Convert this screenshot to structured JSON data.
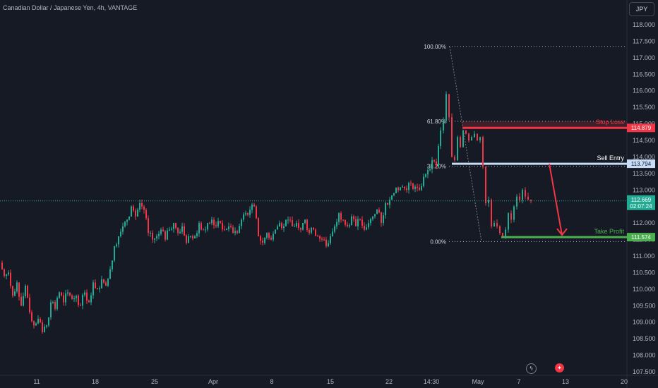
{
  "header": {
    "title": "Canadian Dollar / Japanese Yen, 4h, VANTAGE"
  },
  "currency_button": "JPY",
  "events": [
    {
      "icon": "lightning-icon"
    },
    {
      "icon": "canada-flag-icon"
    }
  ],
  "colors": {
    "background": "#161a25",
    "up": "#22ab94",
    "down": "#f23645",
    "stop_loss": "#f23645",
    "sell_entry": "#c7dcf5",
    "take_profit": "#4caf50"
  },
  "chart_data": {
    "type": "candlestick",
    "title": "Canadian Dollar / Japanese Yen, 4h, VANTAGE",
    "ylim": [
      107.5,
      118.0
    ],
    "y_ticks": [
      "118.000",
      "117.500",
      "117.000",
      "116.500",
      "116.000",
      "115.500",
      "115.000",
      "114.500",
      "114.000",
      "113.500",
      "113.000",
      "112.500",
      "112.000",
      "111.500",
      "111.000",
      "110.500",
      "110.000",
      "109.500",
      "109.000",
      "108.500",
      "108.000",
      "107.500"
    ],
    "x_ticks": [
      "11",
      "18",
      "25",
      "Apr",
      "8",
      "15",
      "22",
      "14:30",
      "May",
      "7",
      "13",
      "20"
    ],
    "last_price": {
      "value": "112.669",
      "countdown": "02:07:24"
    },
    "levels": [
      {
        "name": "Stop Loss",
        "value": 114.879,
        "label": "114.879"
      },
      {
        "name": "Sell Entry",
        "value": 113.794,
        "label": "113.794"
      },
      {
        "name": "Take Profit",
        "value": 111.574,
        "label": "111.574"
      }
    ],
    "fibonacci": [
      {
        "label": "100.00%",
        "value": 117.34
      },
      {
        "label": "61.80%",
        "value": 115.08
      },
      {
        "label": "38.20%",
        "value": 113.72
      },
      {
        "label": "0.00%",
        "value": 111.44
      }
    ],
    "path": [
      [
        0,
        110.8
      ],
      [
        6,
        110.4
      ],
      [
        12,
        110.5
      ],
      [
        18,
        109.8
      ],
      [
        24,
        110.2
      ],
      [
        30,
        109.5
      ],
      [
        36,
        110.1
      ],
      [
        42,
        109.3
      ],
      [
        48,
        108.9
      ],
      [
        54,
        109.1
      ],
      [
        60,
        108.7
      ],
      [
        66,
        108.9
      ],
      [
        72,
        109.6
      ],
      [
        78,
        109.4
      ],
      [
        84,
        109.9
      ],
      [
        90,
        109.6
      ],
      [
        96,
        109.9
      ],
      [
        102,
        109.7
      ],
      [
        108,
        109.8
      ],
      [
        114,
        109.5
      ],
      [
        120,
        109.9
      ],
      [
        126,
        109.6
      ],
      [
        132,
        110.2
      ],
      [
        138,
        110.0
      ],
      [
        144,
        110.3
      ],
      [
        150,
        110.1
      ],
      [
        156,
        110.6
      ],
      [
        162,
        111.3
      ],
      [
        168,
        111.6
      ],
      [
        174,
        111.9
      ],
      [
        180,
        112.1
      ],
      [
        186,
        112.5
      ],
      [
        192,
        112.2
      ],
      [
        198,
        112.6
      ],
      [
        204,
        112.4
      ],
      [
        210,
        111.7
      ],
      [
        216,
        111.5
      ],
      [
        222,
        111.6
      ],
      [
        228,
        111.8
      ],
      [
        234,
        111.5
      ],
      [
        240,
        111.8
      ],
      [
        246,
        112.0
      ],
      [
        252,
        111.7
      ],
      [
        258,
        111.9
      ],
      [
        264,
        111.4
      ],
      [
        270,
        111.6
      ],
      [
        276,
        111.6
      ],
      [
        282,
        112.0
      ],
      [
        288,
        111.8
      ],
      [
        294,
        112.0
      ],
      [
        300,
        112.1
      ],
      [
        306,
        111.9
      ],
      [
        312,
        112.0
      ],
      [
        318,
        111.8
      ],
      [
        324,
        111.9
      ],
      [
        330,
        111.7
      ],
      [
        336,
        111.7
      ],
      [
        342,
        112.1
      ],
      [
        348,
        112.3
      ],
      [
        354,
        112.4
      ],
      [
        360,
        112.5
      ],
      [
        366,
        111.6
      ],
      [
        372,
        111.4
      ],
      [
        378,
        111.7
      ],
      [
        384,
        111.5
      ],
      [
        390,
        111.8
      ],
      [
        396,
        112.0
      ],
      [
        402,
        111.9
      ],
      [
        408,
        112.1
      ],
      [
        414,
        111.9
      ],
      [
        420,
        112.0
      ],
      [
        426,
        111.8
      ],
      [
        432,
        112.1
      ],
      [
        438,
        111.7
      ],
      [
        444,
        111.8
      ],
      [
        450,
        111.6
      ],
      [
        456,
        111.5
      ],
      [
        462,
        111.3
      ],
      [
        468,
        111.6
      ],
      [
        474,
        111.9
      ],
      [
        480,
        112.3
      ],
      [
        486,
        112.1
      ],
      [
        492,
        111.9
      ],
      [
        498,
        112.2
      ],
      [
        504,
        111.9
      ],
      [
        510,
        112.1
      ],
      [
        516,
        111.8
      ],
      [
        522,
        112.0
      ],
      [
        528,
        112.2
      ],
      [
        534,
        112.4
      ],
      [
        540,
        112.0
      ],
      [
        546,
        112.6
      ],
      [
        552,
        112.7
      ],
      [
        558,
        112.9
      ],
      [
        564,
        113.0
      ],
      [
        570,
        113.1
      ],
      [
        576,
        113.0
      ],
      [
        582,
        113.2
      ],
      [
        588,
        113.1
      ],
      [
        594,
        113.0
      ],
      [
        600,
        113.4
      ],
      [
        606,
        113.6
      ],
      [
        612,
        113.9
      ],
      [
        618,
        113.7
      ],
      [
        624,
        114.8
      ],
      [
        628,
        115.1
      ],
      [
        632,
        115.9
      ],
      [
        636,
        115.2
      ],
      [
        640,
        114.0
      ],
      [
        644,
        113.9
      ],
      [
        648,
        114.6
      ],
      [
        652,
        114.3
      ],
      [
        656,
        114.8
      ],
      [
        660,
        114.7
      ],
      [
        664,
        114.5
      ],
      [
        668,
        114.6
      ],
      [
        672,
        114.7
      ],
      [
        676,
        114.5
      ],
      [
        680,
        114.6
      ],
      [
        684,
        113.7
      ],
      [
        688,
        112.6
      ],
      [
        692,
        112.7
      ],
      [
        696,
        111.9
      ],
      [
        700,
        112.0
      ],
      [
        704,
        111.9
      ],
      [
        708,
        111.7
      ],
      [
        712,
        111.6
      ],
      [
        716,
        111.8
      ],
      [
        720,
        112.3
      ],
      [
        724,
        112.1
      ],
      [
        728,
        112.5
      ],
      [
        732,
        112.8
      ],
      [
        736,
        112.7
      ],
      [
        740,
        113.0
      ],
      [
        744,
        112.8
      ],
      [
        748,
        112.7
      ],
      [
        752,
        112.669
      ]
    ]
  }
}
